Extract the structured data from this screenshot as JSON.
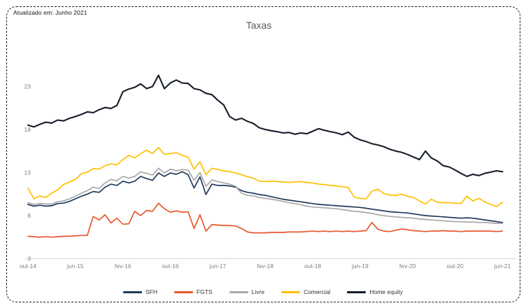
{
  "frame": {
    "update_note": "Atualizado em: Junho 2021"
  },
  "chart_data": {
    "type": "line",
    "title": "Taxas",
    "x": [
      "out-14",
      "nov-14",
      "dez-14",
      "jan-15",
      "fev-15",
      "mar-15",
      "abr-15",
      "mai-15",
      "jun-15",
      "jul-15",
      "ago-15",
      "set-15",
      "out-15",
      "nov-15",
      "dez-15",
      "jan-16",
      "fev-16",
      "mar-16",
      "abr-16",
      "mai-16",
      "jun-16",
      "jul-16",
      "ago-16",
      "set-16",
      "out-16",
      "nov-16",
      "dez-16",
      "jan-17",
      "fev-17",
      "mar-17",
      "abr-17",
      "mai-17",
      "jun-17",
      "jul-17",
      "ago-17",
      "set-17",
      "out-17",
      "nov-17",
      "dez-17",
      "jan-18",
      "fev-18",
      "mar-18",
      "abr-18",
      "mai-18",
      "jun-18",
      "jul-18",
      "ago-18",
      "set-18",
      "out-18",
      "nov-18",
      "dez-18",
      "jan-19",
      "fev-19",
      "mar-19",
      "abr-19",
      "mai-19",
      "jun-19",
      "jul-19",
      "ago-19",
      "set-19",
      "out-19",
      "nov-19",
      "dez-19",
      "jan-20",
      "fev-20",
      "mar-20",
      "abr-20",
      "mai-20",
      "jun-20",
      "jul-20",
      "ago-20",
      "set-20",
      "out-20",
      "nov-20",
      "dez-20",
      "jan-21",
      "fev-21",
      "mar-21",
      "abr-21",
      "mai-21",
      "jun-21"
    ],
    "x_tick_labels": [
      "out-14",
      "jun-15",
      "fev-16",
      "out-16",
      "jun-17",
      "fev-18",
      "out-18",
      "jun-19",
      "fev-20",
      "out-20",
      "jun-21"
    ],
    "tick_every": 8,
    "y_ticks": [
      3,
      8,
      13,
      18,
      23
    ],
    "ylim": [
      3,
      25.5
    ],
    "grid": "bottom-axis-only",
    "legend_position": "bottom-center",
    "axis_label_color": "#7f7f7f",
    "axis_line_color": "#d6d6d6",
    "series": [
      {
        "name": "SFH",
        "color": "#1f3b5c",
        "values": [
          9.3,
          9.1,
          9.2,
          9.1,
          9.15,
          9.4,
          9.45,
          9.65,
          9.95,
          10.25,
          10.5,
          10.8,
          10.7,
          11.3,
          11.65,
          11.5,
          12.0,
          11.8,
          12.0,
          12.55,
          12.3,
          12.1,
          12.95,
          12.55,
          12.95,
          12.8,
          13.1,
          12.75,
          11.2,
          12.5,
          10.45,
          11.65,
          11.5,
          11.5,
          11.45,
          11.3,
          10.9,
          10.7,
          10.6,
          10.45,
          10.35,
          10.2,
          10.05,
          9.9,
          9.8,
          9.7,
          9.6,
          9.5,
          9.4,
          9.3,
          9.25,
          9.2,
          9.15,
          9.1,
          9.05,
          9.0,
          8.95,
          8.85,
          8.75,
          8.65,
          8.55,
          8.45,
          8.4,
          8.35,
          8.3,
          8.2,
          8.1,
          8.0,
          7.95,
          7.9,
          7.85,
          7.8,
          7.75,
          7.7,
          7.75,
          7.7,
          7.6,
          7.5,
          7.4,
          7.3,
          7.2
        ]
      },
      {
        "name": "FGTS",
        "color": "#e8582c",
        "values": [
          5.6,
          5.55,
          5.5,
          5.55,
          5.5,
          5.55,
          5.6,
          5.6,
          5.65,
          5.7,
          5.7,
          7.9,
          7.5,
          8.1,
          7.15,
          7.7,
          7.0,
          7.05,
          8.5,
          8.0,
          8.6,
          8.5,
          9.45,
          8.8,
          8.4,
          8.55,
          8.4,
          8.45,
          6.5,
          8.1,
          6.2,
          6.95,
          6.9,
          6.85,
          6.85,
          6.8,
          6.5,
          6.1,
          6.0,
          6.0,
          6.0,
          6.05,
          6.05,
          6.05,
          6.1,
          6.1,
          6.1,
          6.15,
          6.2,
          6.15,
          6.2,
          6.15,
          6.2,
          6.15,
          6.2,
          6.15,
          6.2,
          6.25,
          7.2,
          6.4,
          6.2,
          6.15,
          6.3,
          6.45,
          6.35,
          6.25,
          6.2,
          6.15,
          6.2,
          6.2,
          6.25,
          6.2,
          6.2,
          6.15,
          6.2,
          6.2,
          6.2,
          6.2,
          6.2,
          6.15,
          6.2
        ]
      },
      {
        "name": "Livre",
        "color": "#a8a8a8",
        "values": [
          9.5,
          9.3,
          9.4,
          9.35,
          9.35,
          9.6,
          9.7,
          9.95,
          10.25,
          10.6,
          10.9,
          11.3,
          11.15,
          11.8,
          12.2,
          12.05,
          12.55,
          12.35,
          12.55,
          13.1,
          12.9,
          12.7,
          13.5,
          12.95,
          13.4,
          13.2,
          13.35,
          13.3,
          12.1,
          13.0,
          11.4,
          12.15,
          11.95,
          11.8,
          11.65,
          11.4,
          10.6,
          10.35,
          10.3,
          10.1,
          10.0,
          9.9,
          9.8,
          9.65,
          9.5,
          9.4,
          9.25,
          9.1,
          9.0,
          8.95,
          8.9,
          8.85,
          8.8,
          8.7,
          8.6,
          8.5,
          8.45,
          8.35,
          8.25,
          8.1,
          8.0,
          7.9,
          7.85,
          7.8,
          7.75,
          7.7,
          7.6,
          7.55,
          7.5,
          7.45,
          7.4,
          7.35,
          7.3,
          7.3,
          7.25,
          7.25,
          7.2,
          7.2,
          7.15,
          7.1,
          7.1
        ]
      },
      {
        "name": "Comercial",
        "color": "#ffc000",
        "values": [
          11.2,
          9.95,
          10.3,
          10.1,
          10.6,
          11.0,
          11.6,
          11.9,
          12.2,
          12.85,
          13.05,
          13.45,
          13.4,
          13.8,
          14.0,
          13.9,
          14.5,
          15.0,
          14.7,
          15.2,
          15.6,
          15.2,
          15.9,
          15.1,
          15.2,
          15.3,
          15.0,
          14.8,
          13.4,
          14.25,
          12.75,
          13.5,
          13.35,
          13.2,
          13.1,
          12.95,
          12.75,
          12.5,
          12.35,
          12.0,
          11.95,
          12.0,
          11.95,
          11.9,
          11.85,
          11.9,
          11.95,
          11.85,
          11.8,
          11.65,
          11.6,
          11.5,
          11.45,
          11.35,
          11.25,
          10.15,
          10.0,
          9.95,
          10.85,
          11.05,
          10.55,
          10.4,
          10.35,
          10.5,
          10.25,
          10.1,
          9.7,
          9.35,
          9.9,
          9.55,
          9.5,
          9.5,
          9.45,
          9.4,
          10.25,
          9.7,
          10.0,
          9.6,
          9.3,
          9.05,
          9.55
        ]
      },
      {
        "name": "Home equity",
        "color": "#151d29",
        "values": [
          18.5,
          18.3,
          18.6,
          18.85,
          18.75,
          19.1,
          19.0,
          19.3,
          19.5,
          19.75,
          20.05,
          19.95,
          20.3,
          20.55,
          20.45,
          20.8,
          22.4,
          22.7,
          22.9,
          23.3,
          22.75,
          23.0,
          24.3,
          22.75,
          23.4,
          23.75,
          23.4,
          23.35,
          22.75,
          22.6,
          22.2,
          22.05,
          21.4,
          20.85,
          19.5,
          19.1,
          19.3,
          18.95,
          18.7,
          18.2,
          18.0,
          17.85,
          17.75,
          17.6,
          17.65,
          17.45,
          17.6,
          17.5,
          17.8,
          18.1,
          17.9,
          17.75,
          17.6,
          17.4,
          17.7,
          17.1,
          16.8,
          16.6,
          16.35,
          16.2,
          16.0,
          15.7,
          15.5,
          15.35,
          15.1,
          14.8,
          14.5,
          15.5,
          14.7,
          14.35,
          13.8,
          13.65,
          13.3,
          12.9,
          12.55,
          12.8,
          12.65,
          12.9,
          13.05,
          13.2,
          13.1
        ]
      }
    ]
  }
}
